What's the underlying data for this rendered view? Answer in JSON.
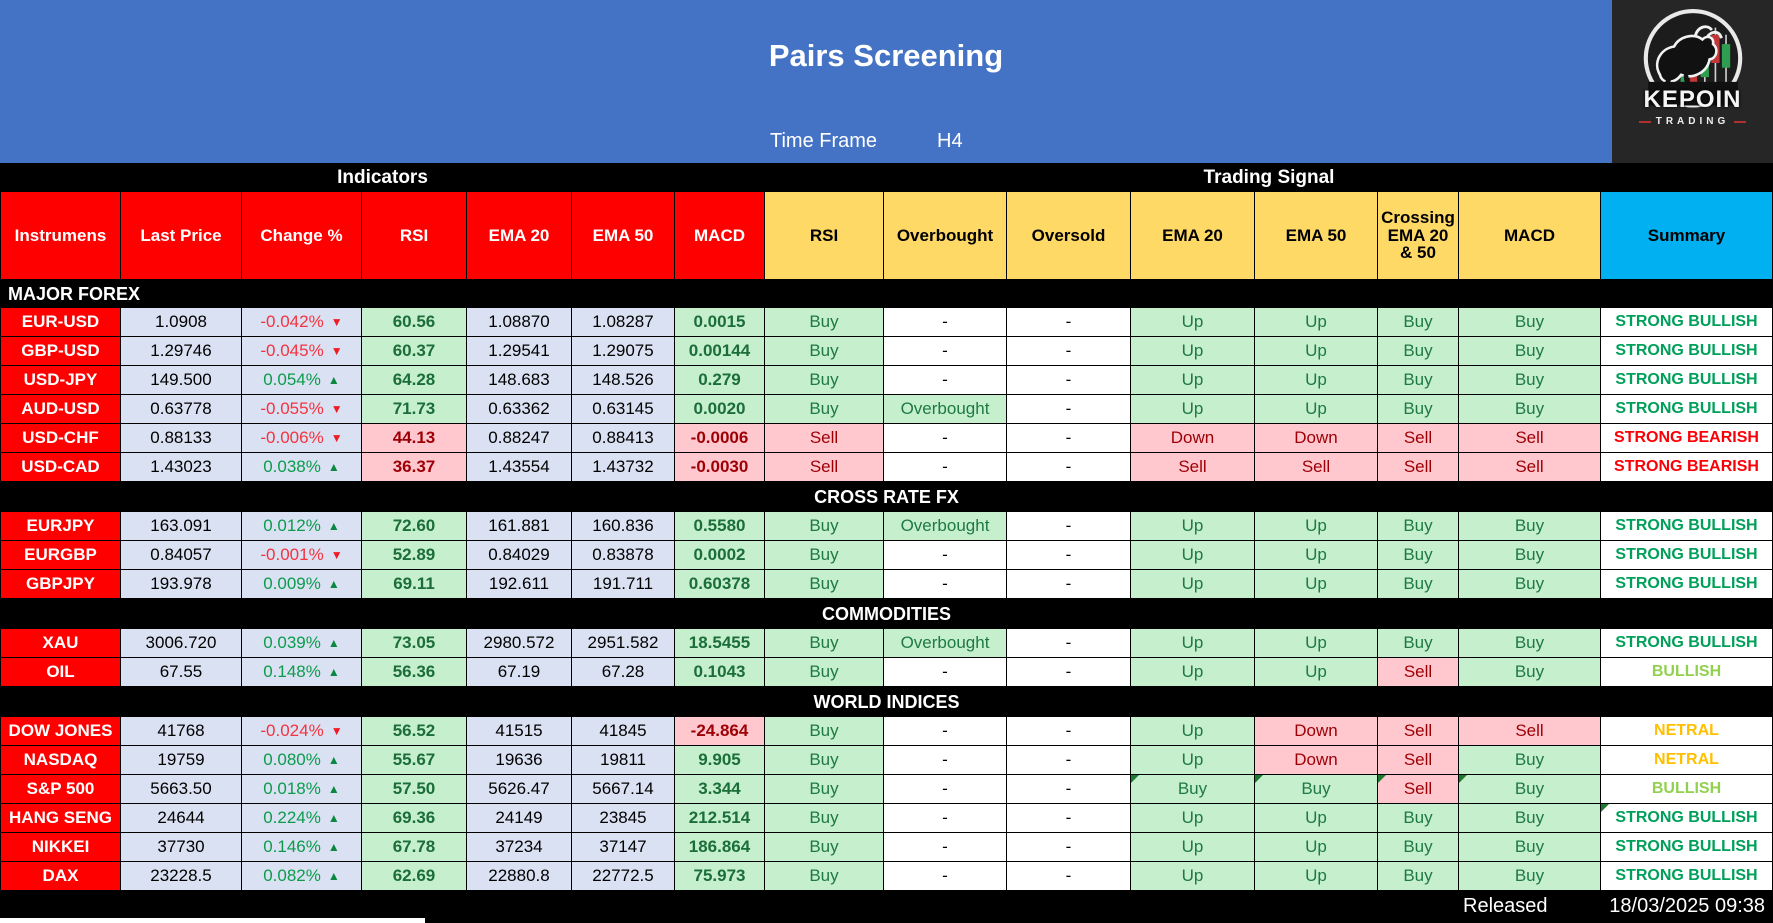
{
  "header": {
    "title": "Pairs Screening",
    "time_frame_label": "Time Frame",
    "time_frame_value": "H4"
  },
  "logo": {
    "brand": "KEPOIN",
    "sub": "TRADING"
  },
  "band": {
    "indicators": "Indicators",
    "trading_signal": "Trading Signal"
  },
  "columns": [
    "Instrumens",
    "Last Price",
    "Change %",
    "RSI",
    "EMA 20",
    "EMA 50",
    "MACD",
    "RSI",
    "Overbought",
    "Oversold",
    "EMA 20",
    "EMA 50",
    "Crossing EMA 20 & 50",
    "MACD",
    "Summary"
  ],
  "footer": {
    "released_label": "Released",
    "timestamp": "18/03/2025 09:38"
  },
  "colors": {
    "banner_blue": "#4472C4",
    "header_red": "#FF0000",
    "header_gold": "#FFD966",
    "summary_header_blue": "#00B0F0",
    "value_lavender": "#D9E1F2",
    "good_bg": "#C6EFCE",
    "good_text": "#006100",
    "bad_bg": "#FFC7CE",
    "bad_text": "#9C0006",
    "strong_bullish": "#00A05A",
    "strong_bearish": "#FC0007",
    "bullish": "#92D050",
    "netral": "#FFC000"
  },
  "sections": [
    {
      "name": "MAJOR FOREX",
      "align": "left",
      "rows": [
        {
          "instrument": "EUR-USD",
          "values": {
            "last_price": "1.0908",
            "change": "-0.042%",
            "change_dir": "down",
            "rsi": "60.56",
            "rsi_neg": false,
            "ema20": "1.08870",
            "ema50": "1.08287",
            "macd": "0.0015",
            "macd_neg": false
          },
          "signals": [
            {
              "t": "Buy",
              "s": "buy"
            },
            {
              "t": "-",
              "s": "none"
            },
            {
              "t": "-",
              "s": "none"
            },
            {
              "t": "Up",
              "s": "buy"
            },
            {
              "t": "Up",
              "s": "buy"
            },
            {
              "t": "Buy",
              "s": "buy"
            },
            {
              "t": "Buy",
              "s": "buy"
            }
          ],
          "summary": {
            "t": "STRONG BULLISH",
            "s": "strong-bull"
          }
        },
        {
          "instrument": "GBP-USD",
          "values": {
            "last_price": "1.29746",
            "change": "-0.045%",
            "change_dir": "down",
            "rsi": "60.37",
            "rsi_neg": false,
            "ema20": "1.29541",
            "ema50": "1.29075",
            "macd": "0.00144",
            "macd_neg": false
          },
          "signals": [
            {
              "t": "Buy",
              "s": "buy"
            },
            {
              "t": "-",
              "s": "none"
            },
            {
              "t": "-",
              "s": "none"
            },
            {
              "t": "Up",
              "s": "buy"
            },
            {
              "t": "Up",
              "s": "buy"
            },
            {
              "t": "Buy",
              "s": "buy"
            },
            {
              "t": "Buy",
              "s": "buy"
            }
          ],
          "summary": {
            "t": "STRONG BULLISH",
            "s": "strong-bull"
          }
        },
        {
          "instrument": "USD-JPY",
          "values": {
            "last_price": "149.500",
            "change": "0.054%",
            "change_dir": "up",
            "rsi": "64.28",
            "rsi_neg": false,
            "ema20": "148.683",
            "ema50": "148.526",
            "macd": "0.279",
            "macd_neg": false
          },
          "signals": [
            {
              "t": "Buy",
              "s": "buy"
            },
            {
              "t": "-",
              "s": "none"
            },
            {
              "t": "-",
              "s": "none"
            },
            {
              "t": "Up",
              "s": "buy"
            },
            {
              "t": "Up",
              "s": "buy"
            },
            {
              "t": "Buy",
              "s": "buy"
            },
            {
              "t": "Buy",
              "s": "buy"
            }
          ],
          "summary": {
            "t": "STRONG BULLISH",
            "s": "strong-bull"
          }
        },
        {
          "instrument": "AUD-USD",
          "values": {
            "last_price": "0.63778",
            "change": "-0.055%",
            "change_dir": "down",
            "rsi": "71.73",
            "rsi_neg": false,
            "ema20": "0.63362",
            "ema50": "0.63145",
            "macd": "0.0020",
            "macd_neg": false
          },
          "signals": [
            {
              "t": "Buy",
              "s": "buy"
            },
            {
              "t": "Overbought",
              "s": "buy"
            },
            {
              "t": "-",
              "s": "none"
            },
            {
              "t": "Up",
              "s": "buy"
            },
            {
              "t": "Up",
              "s": "buy"
            },
            {
              "t": "Buy",
              "s": "buy"
            },
            {
              "t": "Buy",
              "s": "buy"
            }
          ],
          "summary": {
            "t": "STRONG BULLISH",
            "s": "strong-bull"
          }
        },
        {
          "instrument": "USD-CHF",
          "values": {
            "last_price": "0.88133",
            "change": "-0.006%",
            "change_dir": "down",
            "rsi": "44.13",
            "rsi_neg": true,
            "ema20": "0.88247",
            "ema50": "0.88413",
            "macd": "-0.0006",
            "macd_neg": true
          },
          "signals": [
            {
              "t": "Sell",
              "s": "sell"
            },
            {
              "t": "-",
              "s": "none"
            },
            {
              "t": "-",
              "s": "none"
            },
            {
              "t": "Down",
              "s": "sell"
            },
            {
              "t": "Down",
              "s": "sell"
            },
            {
              "t": "Sell",
              "s": "sell"
            },
            {
              "t": "Sell",
              "s": "sell"
            }
          ],
          "summary": {
            "t": "STRONG BEARISH",
            "s": "strong-bear"
          }
        },
        {
          "instrument": "USD-CAD",
          "values": {
            "last_price": "1.43023",
            "change": "0.038%",
            "change_dir": "up",
            "rsi": "36.37",
            "rsi_neg": true,
            "ema20": "1.43554",
            "ema50": "1.43732",
            "macd": "-0.0030",
            "macd_neg": true
          },
          "signals": [
            {
              "t": "Sell",
              "s": "sell"
            },
            {
              "t": "-",
              "s": "none"
            },
            {
              "t": "-",
              "s": "none"
            },
            {
              "t": "Sell",
              "s": "sell"
            },
            {
              "t": "Sell",
              "s": "sell"
            },
            {
              "t": "Sell",
              "s": "sell"
            },
            {
              "t": "Sell",
              "s": "sell"
            }
          ],
          "summary": {
            "t": "STRONG BEARISH",
            "s": "strong-bear"
          }
        }
      ]
    },
    {
      "name": "CROSS RATE FX",
      "align": "center",
      "rows": [
        {
          "instrument": "EURJPY",
          "values": {
            "last_price": "163.091",
            "change": "0.012%",
            "change_dir": "up",
            "rsi": "72.60",
            "rsi_neg": false,
            "ema20": "161.881",
            "ema50": "160.836",
            "macd": "0.5580",
            "macd_neg": false
          },
          "signals": [
            {
              "t": "Buy",
              "s": "buy"
            },
            {
              "t": "Overbought",
              "s": "buy"
            },
            {
              "t": "-",
              "s": "none"
            },
            {
              "t": "Up",
              "s": "buy"
            },
            {
              "t": "Up",
              "s": "buy"
            },
            {
              "t": "Buy",
              "s": "buy"
            },
            {
              "t": "Buy",
              "s": "buy"
            }
          ],
          "summary": {
            "t": "STRONG BULLISH",
            "s": "strong-bull"
          }
        },
        {
          "instrument": "EURGBP",
          "values": {
            "last_price": "0.84057",
            "change": "-0.001%",
            "change_dir": "down",
            "rsi": "52.89",
            "rsi_neg": false,
            "ema20": "0.84029",
            "ema50": "0.83878",
            "macd": "0.0002",
            "macd_neg": false
          },
          "signals": [
            {
              "t": "Buy",
              "s": "buy"
            },
            {
              "t": "-",
              "s": "none"
            },
            {
              "t": "-",
              "s": "none"
            },
            {
              "t": "Up",
              "s": "buy"
            },
            {
              "t": "Up",
              "s": "buy"
            },
            {
              "t": "Buy",
              "s": "buy"
            },
            {
              "t": "Buy",
              "s": "buy"
            }
          ],
          "summary": {
            "t": "STRONG BULLISH",
            "s": "strong-bull"
          }
        },
        {
          "instrument": "GBPJPY",
          "values": {
            "last_price": "193.978",
            "change": "0.009%",
            "change_dir": "up",
            "rsi": "69.11",
            "rsi_neg": false,
            "ema20": "192.611",
            "ema50": "191.711",
            "macd": "0.60378",
            "macd_neg": false
          },
          "signals": [
            {
              "t": "Buy",
              "s": "buy"
            },
            {
              "t": "-",
              "s": "none"
            },
            {
              "t": "-",
              "s": "none"
            },
            {
              "t": "Up",
              "s": "buy"
            },
            {
              "t": "Up",
              "s": "buy"
            },
            {
              "t": "Buy",
              "s": "buy"
            },
            {
              "t": "Buy",
              "s": "buy"
            }
          ],
          "summary": {
            "t": "STRONG BULLISH",
            "s": "strong-bull"
          }
        }
      ]
    },
    {
      "name": "COMMODITIES",
      "align": "center",
      "rows": [
        {
          "instrument": "XAU",
          "values": {
            "last_price": "3006.720",
            "change": "0.039%",
            "change_dir": "up",
            "rsi": "73.05",
            "rsi_neg": false,
            "ema20": "2980.572",
            "ema50": "2951.582",
            "macd": "18.5455",
            "macd_neg": false
          },
          "signals": [
            {
              "t": "Buy",
              "s": "buy"
            },
            {
              "t": "Overbought",
              "s": "buy"
            },
            {
              "t": "-",
              "s": "none"
            },
            {
              "t": "Up",
              "s": "buy"
            },
            {
              "t": "Up",
              "s": "buy"
            },
            {
              "t": "Buy",
              "s": "buy"
            },
            {
              "t": "Buy",
              "s": "buy"
            }
          ],
          "summary": {
            "t": "STRONG BULLISH",
            "s": "strong-bull"
          }
        },
        {
          "instrument": "OIL",
          "values": {
            "last_price": "67.55",
            "change": "0.148%",
            "change_dir": "up",
            "rsi": "56.36",
            "rsi_neg": false,
            "ema20": "67.19",
            "ema50": "67.28",
            "macd": "0.1043",
            "macd_neg": false
          },
          "signals": [
            {
              "t": "Buy",
              "s": "buy"
            },
            {
              "t": "-",
              "s": "none"
            },
            {
              "t": "-",
              "s": "none"
            },
            {
              "t": "Up",
              "s": "buy"
            },
            {
              "t": "Up",
              "s": "buy"
            },
            {
              "t": "Sell",
              "s": "sell"
            },
            {
              "t": "Buy",
              "s": "buy"
            }
          ],
          "summary": {
            "t": "BULLISH",
            "s": "bull"
          }
        }
      ]
    },
    {
      "name": "WORLD INDICES",
      "align": "center",
      "rows": [
        {
          "instrument": "DOW JONES",
          "values": {
            "last_price": "41768",
            "change": "-0.024%",
            "change_dir": "down",
            "rsi": "56.52",
            "rsi_neg": false,
            "ema20": "41515",
            "ema50": "41845",
            "macd": "-24.864",
            "macd_neg": true
          },
          "signals": [
            {
              "t": "Buy",
              "s": "buy"
            },
            {
              "t": "-",
              "s": "none"
            },
            {
              "t": "-",
              "s": "none"
            },
            {
              "t": "Up",
              "s": "buy"
            },
            {
              "t": "Down",
              "s": "sell"
            },
            {
              "t": "Sell",
              "s": "sell"
            },
            {
              "t": "Sell",
              "s": "sell"
            }
          ],
          "summary": {
            "t": "NETRAL",
            "s": "netral"
          }
        },
        {
          "instrument": "NASDAQ",
          "values": {
            "last_price": "19759",
            "change": "0.080%",
            "change_dir": "up",
            "rsi": "55.67",
            "rsi_neg": false,
            "ema20": "19636",
            "ema50": "19811",
            "macd": "9.905",
            "macd_neg": false
          },
          "signals": [
            {
              "t": "Buy",
              "s": "buy"
            },
            {
              "t": "-",
              "s": "none"
            },
            {
              "t": "-",
              "s": "none"
            },
            {
              "t": "Up",
              "s": "buy"
            },
            {
              "t": "Down",
              "s": "sell"
            },
            {
              "t": "Sell",
              "s": "sell"
            },
            {
              "t": "Buy",
              "s": "buy"
            }
          ],
          "summary": {
            "t": "NETRAL",
            "s": "netral"
          }
        },
        {
          "instrument": "S&P 500",
          "values": {
            "last_price": "5663.50",
            "change": "0.018%",
            "change_dir": "up",
            "rsi": "57.50",
            "rsi_neg": false,
            "ema20": "5626.47",
            "ema50": "5667.14",
            "macd": "3.344",
            "macd_neg": false
          },
          "signals": [
            {
              "t": "Buy",
              "s": "buy"
            },
            {
              "t": "-",
              "s": "none"
            },
            {
              "t": "-",
              "s": "none"
            },
            {
              "t": "Buy",
              "s": "buy",
              "m": true
            },
            {
              "t": "Buy",
              "s": "buy",
              "m": true
            },
            {
              "t": "Sell",
              "s": "sell",
              "m": true
            },
            {
              "t": "Buy",
              "s": "buy",
              "m": true
            }
          ],
          "summary": {
            "t": "BULLISH",
            "s": "bull"
          }
        },
        {
          "instrument": "HANG SENG",
          "values": {
            "last_price": "24644",
            "change": "0.224%",
            "change_dir": "up",
            "rsi": "69.36",
            "rsi_neg": false,
            "ema20": "24149",
            "ema50": "23845",
            "macd": "212.514",
            "macd_neg": false
          },
          "signals": [
            {
              "t": "Buy",
              "s": "buy"
            },
            {
              "t": "-",
              "s": "none"
            },
            {
              "t": "-",
              "s": "none"
            },
            {
              "t": "Up",
              "s": "buy"
            },
            {
              "t": "Up",
              "s": "buy"
            },
            {
              "t": "Buy",
              "s": "buy"
            },
            {
              "t": "Buy",
              "s": "buy"
            }
          ],
          "summary": {
            "t": "STRONG BULLISH",
            "s": "strong-bull",
            "m": true
          }
        },
        {
          "instrument": "NIKKEI",
          "values": {
            "last_price": "37730",
            "change": "0.146%",
            "change_dir": "up",
            "rsi": "67.78",
            "rsi_neg": false,
            "ema20": "37234",
            "ema50": "37147",
            "macd": "186.864",
            "macd_neg": false
          },
          "signals": [
            {
              "t": "Buy",
              "s": "buy"
            },
            {
              "t": "-",
              "s": "none"
            },
            {
              "t": "-",
              "s": "none"
            },
            {
              "t": "Up",
              "s": "buy"
            },
            {
              "t": "Up",
              "s": "buy"
            },
            {
              "t": "Buy",
              "s": "buy"
            },
            {
              "t": "Buy",
              "s": "buy"
            }
          ],
          "summary": {
            "t": "STRONG BULLISH",
            "s": "strong-bull"
          }
        },
        {
          "instrument": "DAX",
          "values": {
            "last_price": "23228.5",
            "change": "0.082%",
            "change_dir": "up",
            "rsi": "62.69",
            "rsi_neg": false,
            "ema20": "22880.8",
            "ema50": "22772.5",
            "macd": "75.973",
            "macd_neg": false
          },
          "signals": [
            {
              "t": "Buy",
              "s": "buy"
            },
            {
              "t": "-",
              "s": "none"
            },
            {
              "t": "-",
              "s": "none"
            },
            {
              "t": "Up",
              "s": "buy"
            },
            {
              "t": "Up",
              "s": "buy"
            },
            {
              "t": "Buy",
              "s": "buy"
            },
            {
              "t": "Buy",
              "s": "buy"
            }
          ],
          "summary": {
            "t": "STRONG BULLISH",
            "s": "strong-bull"
          }
        }
      ]
    }
  ]
}
